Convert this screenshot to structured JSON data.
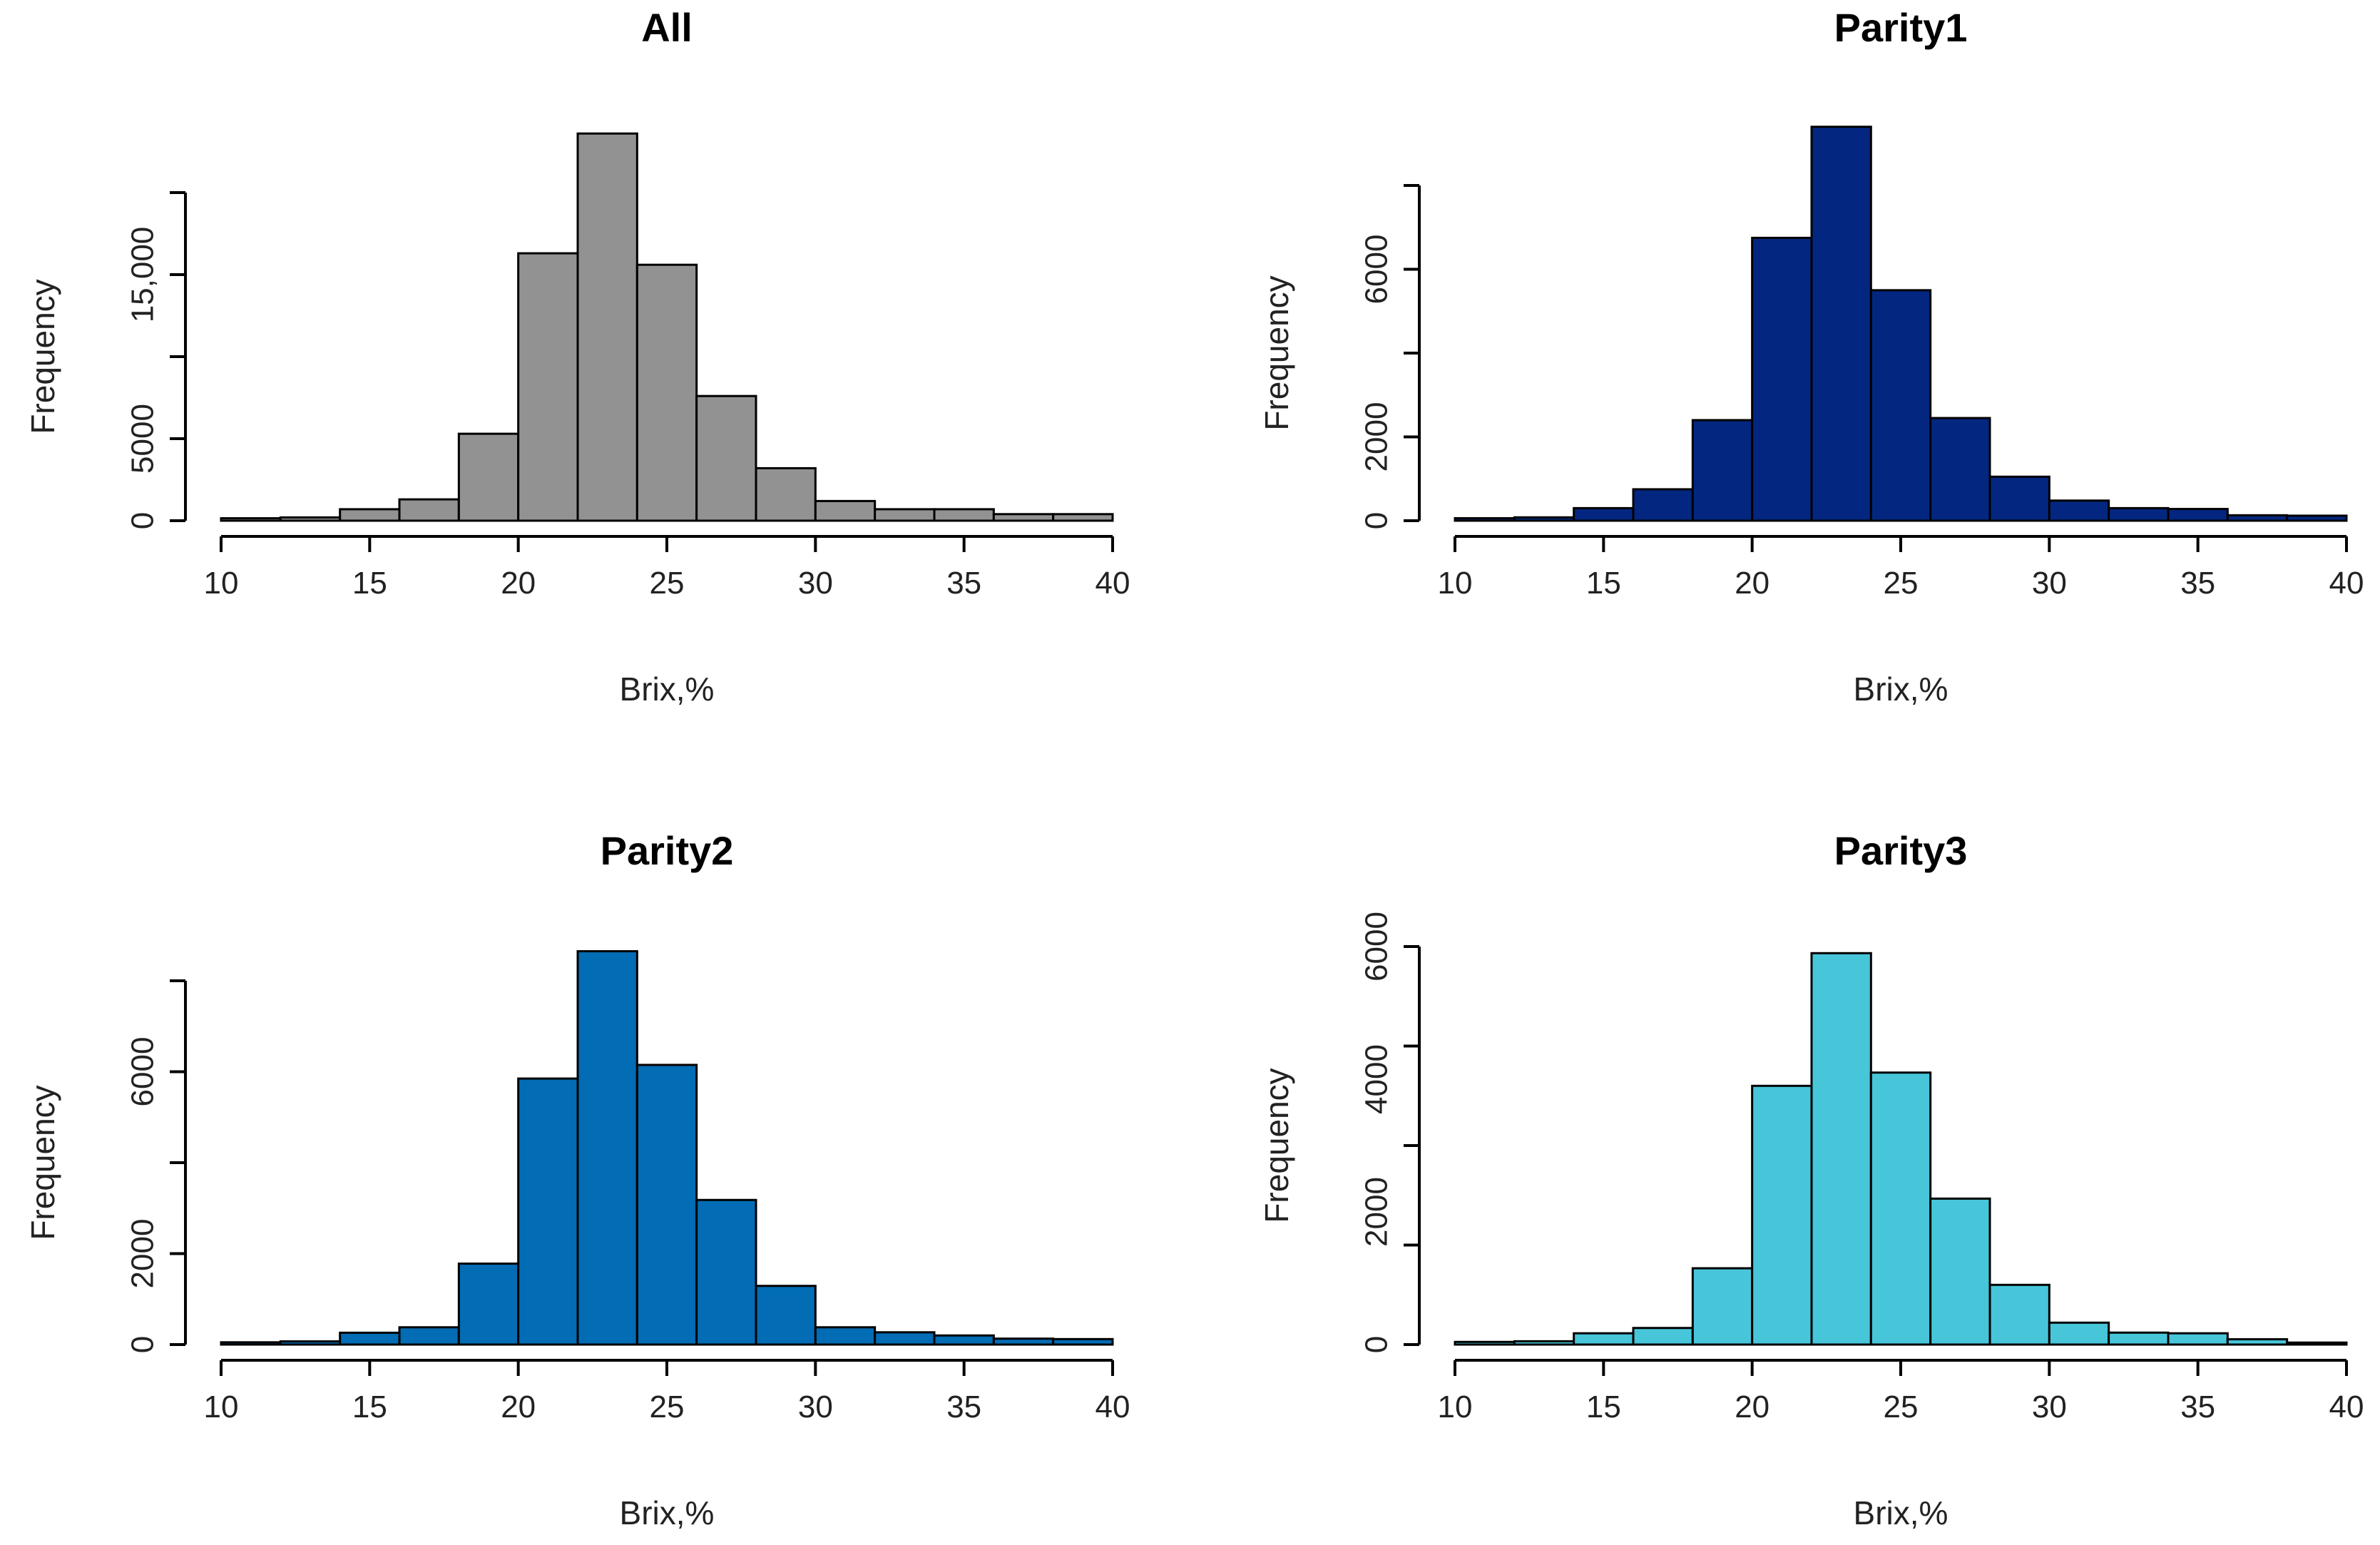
{
  "chart_data": [
    {
      "type": "bar",
      "subtype": "histogram",
      "title": "All",
      "xlabel": "Brix,%",
      "ylabel": "Frequency",
      "color": "#929292",
      "bin_width": 2,
      "xlim": [
        10,
        40
      ],
      "ylim": [
        0,
        20000
      ],
      "x_ticks": [
        10,
        15,
        20,
        25,
        30,
        35,
        40
      ],
      "y_ticks": [
        0,
        5000,
        15000
      ],
      "y_tick_labels": [
        "0",
        "5000",
        "15,000"
      ],
      "y_axis_top": 20000,
      "bins": [
        10,
        12,
        14,
        16,
        18,
        20,
        22,
        24,
        26,
        28,
        30,
        32,
        34,
        36,
        38
      ],
      "values": [
        150,
        200,
        700,
        1300,
        5300,
        16300,
        23600,
        15600,
        7600,
        3200,
        1200,
        700,
        700,
        400,
        400
      ]
    },
    {
      "type": "bar",
      "subtype": "histogram",
      "title": "Parity1",
      "xlabel": "Brix,%",
      "ylabel": "Frequency",
      "color": "#032780",
      "bin_width": 2,
      "xlim": [
        10,
        40
      ],
      "ylim": [
        0,
        8000
      ],
      "x_ticks": [
        10,
        15,
        20,
        25,
        30,
        35,
        40
      ],
      "y_ticks": [
        0,
        2000,
        6000
      ],
      "y_tick_labels": [
        "0",
        "2000",
        "6000"
      ],
      "y_axis_top": 8000,
      "bins": [
        10,
        12,
        14,
        16,
        18,
        20,
        22,
        24,
        26,
        28,
        30,
        32,
        34,
        36,
        38
      ],
      "values": [
        60,
        80,
        300,
        750,
        2400,
        6750,
        9400,
        5500,
        2450,
        1050,
        480,
        300,
        280,
        130,
        120
      ]
    },
    {
      "type": "bar",
      "subtype": "histogram",
      "title": "Parity2",
      "xlabel": "Brix,%",
      "ylabel": "Frequency",
      "color": "#026CB4",
      "bin_width": 2,
      "xlim": [
        10,
        40
      ],
      "ylim": [
        0,
        8000
      ],
      "x_ticks": [
        10,
        15,
        20,
        25,
        30,
        35,
        40
      ],
      "y_ticks": [
        0,
        2000,
        6000
      ],
      "y_tick_labels": [
        "0",
        "2000",
        "6000"
      ],
      "y_axis_top": 8000,
      "bins": [
        10,
        12,
        14,
        16,
        18,
        20,
        22,
        24,
        26,
        28,
        30,
        32,
        34,
        36,
        38
      ],
      "values": [
        50,
        70,
        260,
        380,
        1780,
        5850,
        8650,
        6150,
        3180,
        1290,
        380,
        270,
        200,
        130,
        120
      ]
    },
    {
      "type": "bar",
      "subtype": "histogram",
      "title": "Parity3",
      "xlabel": "Brix,%",
      "ylabel": "Frequency",
      "color": "#47C6DA",
      "bin_width": 2,
      "xlim": [
        10,
        40
      ],
      "ylim": [
        0,
        6000
      ],
      "x_ticks": [
        10,
        15,
        20,
        25,
        30,
        35,
        40
      ],
      "y_ticks": [
        0,
        2000,
        4000,
        6000
      ],
      "y_tick_labels": [
        "0",
        "2000",
        "4000",
        "6000"
      ],
      "y_axis_top": 6000,
      "bins": [
        10,
        12,
        14,
        16,
        18,
        20,
        22,
        24,
        26,
        28,
        30,
        32,
        34,
        36,
        38
      ],
      "values": [
        40,
        50,
        170,
        250,
        1150,
        3900,
        5900,
        4100,
        2200,
        900,
        330,
        180,
        170,
        80,
        30
      ]
    }
  ]
}
